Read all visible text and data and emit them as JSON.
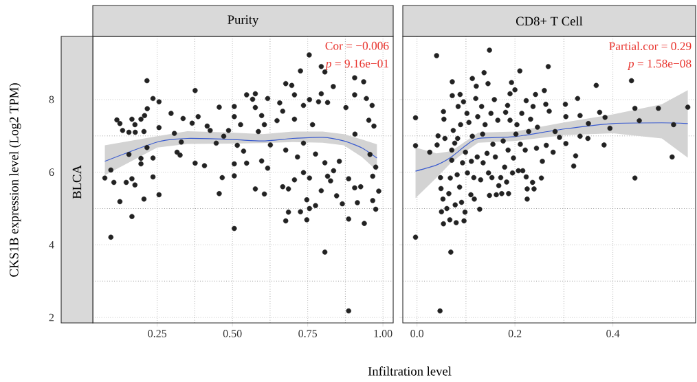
{
  "chart_data": [
    {
      "type": "scatter",
      "title": "Purity",
      "subtitle": "BLCA",
      "xlabel": "Infiltration level",
      "ylabel": "CKS1B expression level (Log2 TPM)",
      "annotations": [
        "Cor = −0.006",
        "*p* = 9.16e−01"
      ],
      "xlim": [
        0.036,
        1.034
      ],
      "ylim": [
        1.85,
        9.74
      ],
      "xticks": [
        {
          "value": 0.25,
          "label": "0.25"
        },
        {
          "value": 0.5,
          "label": "0.50"
        },
        {
          "value": 0.75,
          "label": "0.75"
        },
        {
          "value": 1.0,
          "label": "1.00"
        }
      ],
      "yticks": [
        2,
        4,
        6,
        8
      ],
      "grid": true,
      "marker": "circle",
      "series": [
        {
          "color": "#222222",
          "x": [
            0.076,
            0.096,
            0.096,
            0.106,
            0.116,
            0.126,
            0.126,
            0.135,
            0.147,
            0.156,
            0.156,
            0.166,
            0.166,
            0.166,
            0.176,
            0.176,
            0.177,
            0.196,
            0.196,
            0.196,
            0.206,
            0.206,
            0.208,
            0.216,
            0.216,
            0.217,
            0.236,
            0.236,
            0.236,
            0.256,
            0.256,
            0.256,
            0.296,
            0.307,
            0.316,
            0.326,
            0.336,
            0.33,
            0.366,
            0.376,
            0.376,
            0.386,
            0.407,
            0.416,
            0.426,
            0.446,
            0.456,
            0.456,
            0.466,
            0.471,
            0.487,
            0.506,
            0.506,
            0.506,
            0.506,
            0.506,
            0.516,
            0.527,
            0.537,
            0.547,
            0.547,
            0.567,
            0.576,
            0.576,
            0.576,
            0.586,
            0.597,
            0.597,
            0.606,
            0.606,
            0.617,
            0.617,
            0.626,
            0.648,
            0.657,
            0.667,
            0.667,
            0.677,
            0.677,
            0.677,
            0.686,
            0.686,
            0.697,
            0.706,
            0.706,
            0.706,
            0.716,
            0.726,
            0.726,
            0.736,
            0.736,
            0.736,
            0.747,
            0.747,
            0.755,
            0.756,
            0.756,
            0.756,
            0.766,
            0.776,
            0.776,
            0.786,
            0.795,
            0.795,
            0.795,
            0.807,
            0.807,
            0.807,
            0.816,
            0.816,
            0.826,
            0.835,
            0.836,
            0.846,
            0.855,
            0.865,
            0.877,
            0.886,
            0.886,
            0.886,
            0.906,
            0.906,
            0.906,
            0.907,
            0.915,
            0.926,
            0.936,
            0.938,
            0.945,
            0.953,
            0.957,
            0.964,
            0.966,
            0.966,
            0.976,
            0.976,
            0.986,
            0.97
          ],
          "values": [
            5.84,
            6.06,
            4.21,
            5.72,
            7.44,
            7.34,
            5.19,
            7.15,
            5.72,
            7.1,
            6.49,
            7.46,
            5.82,
            4.78,
            5.65,
            7.31,
            7.1,
            7.46,
            6.38,
            6.23,
            5.26,
            7.12,
            7.56,
            8.52,
            6.68,
            7.75,
            8.03,
            6.39,
            5.87,
            7.94,
            7.23,
            5.38,
            7.62,
            7.07,
            6.55,
            6.47,
            7.48,
            6.83,
            7.35,
            8.25,
            6.25,
            7.53,
            6.18,
            7.27,
            7.15,
            6.8,
            7.79,
            5.41,
            5.85,
            6.99,
            7.15,
            7.81,
            7.53,
            6.23,
            5.9,
            4.45,
            6.74,
            7.31,
            6.58,
            8.13,
            6.25,
            8.01,
            8.16,
            5.54,
            7.78,
            7.12,
            7.56,
            6.31,
            5.4,
            7.31,
            8.03,
            6.11,
            6.75,
            7.42,
            7.91,
            7.68,
            5.6,
            8.44,
            4.66,
            6.61,
            5.54,
            4.9,
            8.39,
            8.13,
            7.46,
            5.79,
            6.42,
            8.79,
            4.91,
            7.84,
            6.8,
            5.99,
            5.24,
            4.69,
            9.23,
            8.0,
            5.84,
            5.0,
            7.31,
            6.5,
            5.08,
            7.94,
            5.49,
            8.91,
            8.16,
            8.76,
            3.8,
            6.26,
            7.92,
            5.89,
            5.76,
            8.36,
            6.04,
            5.35,
            6.3,
            5.13,
            7.78,
            5.82,
            4.71,
            2.18,
            8.6,
            8.13,
            5.57,
            7.05,
            5.16,
            5.6,
            8.49,
            4.59,
            8.03,
            7.43,
            6.49,
            7.84,
            5.89,
            5.22,
            4.98,
            6.14,
            5.48,
            7.27
          ]
        },
        {
          "type": "line",
          "marker": "none",
          "color": "#3a5bcf",
          "x": [
            0.076,
            0.25,
            0.35,
            0.5,
            0.6,
            0.7,
            0.8,
            0.87,
            0.93,
            0.98
          ],
          "values": [
            6.3,
            6.83,
            6.93,
            6.9,
            6.86,
            6.93,
            6.96,
            6.86,
            6.67,
            6.39
          ],
          "lower": [
            5.92,
            6.68,
            6.78,
            6.79,
            6.8,
            6.83,
            6.81,
            6.74,
            6.42,
            6.04
          ],
          "upper": [
            6.74,
            6.99,
            7.13,
            7.09,
            7.05,
            7.12,
            7.12,
            7.05,
            6.9,
            6.77
          ]
        }
      ]
    },
    {
      "type": "scatter",
      "title": "CD8+ T Cell",
      "annotations": [
        "Partial.cor = 0.29",
        "*p* = 1.58e−08"
      ],
      "xlim": [
        -0.029,
        0.569
      ],
      "ylim": [
        1.85,
        9.74
      ],
      "xticks": [
        {
          "value": 0.0,
          "label": "0.0"
        },
        {
          "value": 0.2,
          "label": "0.2"
        },
        {
          "value": 0.4,
          "label": "0.4"
        }
      ],
      "yticks": [
        2,
        4,
        6,
        8
      ],
      "tick_labels": "x",
      "grid": true,
      "marker": "circle",
      "series": [
        {
          "color": "#222222",
          "x": [
            -0.003,
            -0.003,
            -0.003,
            0.026,
            0.04,
            0.043,
            0.041,
            0.047,
            0.048,
            0.049,
            0.05,
            0.053,
            0.054,
            0.054,
            0.055,
            0.057,
            0.061,
            0.065,
            0.067,
            0.068,
            0.069,
            0.071,
            0.071,
            0.072,
            0.072,
            0.074,
            0.077,
            0.078,
            0.08,
            0.082,
            0.083,
            0.084,
            0.087,
            0.088,
            0.089,
            0.091,
            0.093,
            0.095,
            0.096,
            0.098,
            0.099,
            0.102,
            0.103,
            0.106,
            0.11,
            0.111,
            0.113,
            0.113,
            0.116,
            0.117,
            0.12,
            0.121,
            0.123,
            0.124,
            0.128,
            0.13,
            0.132,
            0.134,
            0.135,
            0.137,
            0.139,
            0.143,
            0.145,
            0.146,
            0.148,
            0.148,
            0.151,
            0.153,
            0.155,
            0.158,
            0.16,
            0.162,
            0.165,
            0.167,
            0.171,
            0.173,
            0.176,
            0.179,
            0.181,
            0.183,
            0.185,
            0.186,
            0.187,
            0.19,
            0.19,
            0.193,
            0.195,
            0.197,
            0.2,
            0.202,
            0.204,
            0.207,
            0.21,
            0.211,
            0.214,
            0.216,
            0.221,
            0.223,
            0.223,
            0.225,
            0.225,
            0.228,
            0.232,
            0.236,
            0.237,
            0.239,
            0.242,
            0.244,
            0.246,
            0.254,
            0.256,
            0.26,
            0.263,
            0.264,
            0.268,
            0.27,
            0.278,
            0.282,
            0.291,
            0.303,
            0.304,
            0.304,
            0.32,
            0.324,
            0.328,
            0.333,
            0.333,
            0.349,
            0.35,
            0.366,
            0.373,
            0.382,
            0.384,
            0.394,
            0.438,
            0.445,
            0.445,
            0.454,
            0.493,
            0.521,
            0.524,
            0.553
          ],
          "values": [
            7.5,
            6.73,
            4.21,
            6.55,
            9.21,
            7.0,
            6.75,
            2.18,
            5.85,
            5.55,
            4.91,
            5.26,
            4.58,
            7.67,
            7.46,
            6.93,
            5.0,
            5.41,
            4.69,
            5.84,
            3.8,
            6.61,
            6.33,
            8.49,
            8.11,
            7.15,
            6.8,
            5.1,
            4.61,
            5.93,
            6.93,
            7.81,
            5.59,
            8.14,
            7.31,
            5.17,
            6.26,
            7.94,
            4.66,
            4.9,
            6.55,
            7.62,
            5.98,
            7.37,
            5.38,
            6.3,
            8.58,
            6.99,
            5.85,
            5.26,
            8.03,
            8.37,
            6.42,
            7.53,
            4.98,
            5.79,
            7.81,
            7.05,
            6.26,
            8.74,
            7.31,
            6.52,
            8.44,
            5.98,
            5.36,
            9.36,
            7.62,
            5.85,
            6.77,
            8.0,
            6.42,
            5.38,
            7.43,
            5.63,
            5.85,
            5.41,
            6.86,
            6.14,
            7.65,
            5.73,
            7.84,
            6.61,
            5.41,
            8.16,
            7.43,
            8.47,
            5.98,
            6.39,
            8.27,
            7.05,
            7.31,
            6.04,
            8.79,
            6.77,
            7.62,
            6.04,
            6.61,
            7.97,
            5.87,
            5.54,
            5.26,
            7.12,
            7.46,
            5.72,
            7.81,
            5.54,
            8.14,
            6.66,
            7.24,
            5.84,
            6.3,
            8.25,
            7.87,
            6.74,
            8.91,
            7.68,
            6.55,
            7.12,
            6.96,
            7.87,
            7.53,
            6.79,
            6.17,
            6.45,
            8.03,
            7.56,
            6.99,
            6.93,
            7.34,
            8.39,
            7.65,
            6.75,
            7.51,
            7.21,
            8.52,
            7.76,
            5.84,
            7.42,
            7.76,
            6.42,
            7.31,
            7.79
          ]
        },
        {
          "type": "line",
          "marker": "none",
          "color": "#3a5bcf",
          "x": [
            -0.003,
            0.04,
            0.07,
            0.1,
            0.125,
            0.2,
            0.3,
            0.4,
            0.5,
            0.553
          ],
          "values": [
            6.03,
            6.2,
            6.42,
            6.74,
            6.93,
            6.98,
            7.19,
            7.34,
            7.36,
            7.34
          ],
          "lower": [
            5.29,
            5.85,
            6.27,
            6.58,
            6.81,
            6.86,
            7.02,
            7.07,
            6.93,
            6.4
          ],
          "upper": [
            6.68,
            6.52,
            6.58,
            6.86,
            7.09,
            7.12,
            7.37,
            7.59,
            7.87,
            8.26
          ]
        }
      ]
    }
  ]
}
